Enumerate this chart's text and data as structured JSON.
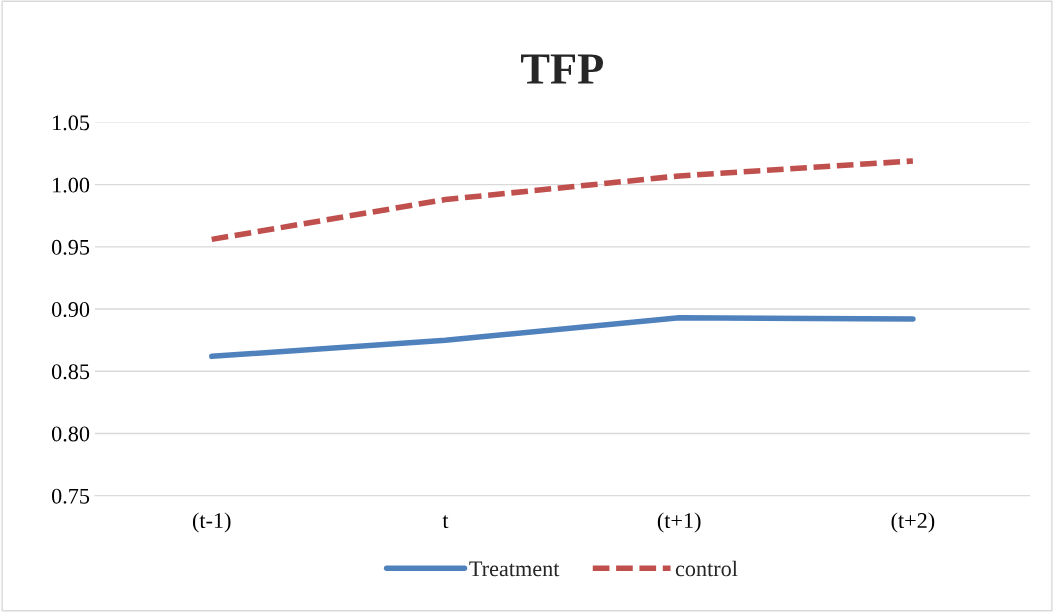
{
  "chart_data": {
    "type": "line",
    "title": "TFP",
    "categories": [
      "(t-1)",
      "t",
      "(t+1)",
      "(t+2)"
    ],
    "series": [
      {
        "name": "Treatment",
        "color": "#4f81bd",
        "values": [
          0.862,
          0.875,
          0.893,
          0.892
        ],
        "line_style": "solid"
      },
      {
        "name": "control",
        "color": "#c0504d",
        "values": [
          0.956,
          0.988,
          1.007,
          1.019
        ],
        "line_style": "dashed"
      }
    ],
    "ylim": [
      0.75,
      1.05
    ],
    "yticks": [
      {
        "value": 0.75,
        "label": "0.75"
      },
      {
        "value": 0.8,
        "label": "0.80"
      },
      {
        "value": 0.85,
        "label": "0.85"
      },
      {
        "value": 0.9,
        "label": "0.90"
      },
      {
        "value": 0.95,
        "label": "0.95"
      },
      {
        "value": 1.0,
        "label": "1.00"
      },
      {
        "value": 1.05,
        "label": "1.05"
      }
    ],
    "grid": "y",
    "legend": "bottom",
    "marker": "none"
  }
}
